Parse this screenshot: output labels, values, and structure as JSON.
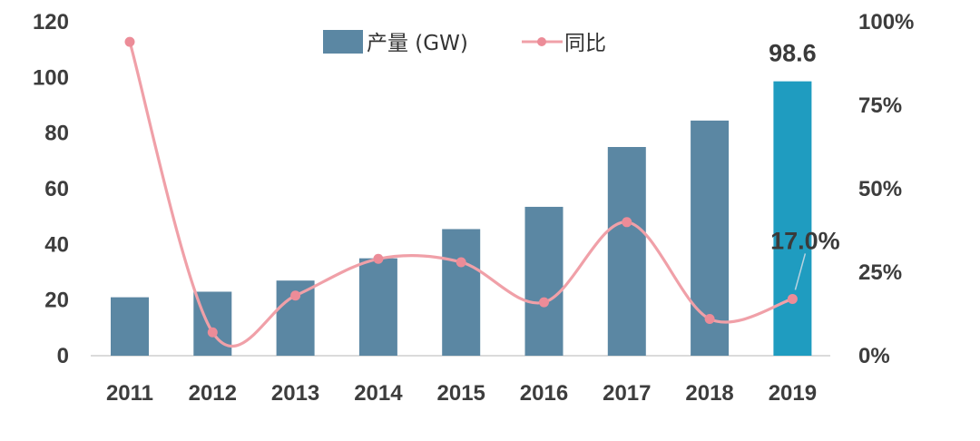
{
  "chart_data": {
    "type": "bar",
    "categories": [
      "2011",
      "2012",
      "2013",
      "2014",
      "2015",
      "2016",
      "2017",
      "2018",
      "2019"
    ],
    "series": [
      {
        "name": "产量 (GW)",
        "type": "bar",
        "axis": "left",
        "values": [
          21,
          23,
          27,
          35,
          45.5,
          53.5,
          75,
          84.5,
          98.6
        ],
        "color": "#5b87a3",
        "highlight_color": "#1f9cc0",
        "highlight_index": 8
      },
      {
        "name": "同比",
        "type": "line",
        "axis": "right",
        "values": [
          94,
          7,
          18,
          29,
          28,
          16,
          40,
          11,
          17
        ],
        "color": "#f0a0a8",
        "marker_color": "#ec8c98"
      }
    ],
    "left_axis": {
      "min": 0,
      "max": 120,
      "ticks": [
        "0",
        "20",
        "40",
        "60",
        "80",
        "100",
        "120"
      ]
    },
    "right_axis": {
      "min": 0,
      "max": 100,
      "ticks": [
        "0%",
        "25%",
        "50%",
        "75%",
        "100%"
      ]
    },
    "data_labels": {
      "bar_2019": "98.6",
      "line_2019": "17.0%"
    },
    "legend": {
      "position": "top-center"
    },
    "grid": false
  }
}
